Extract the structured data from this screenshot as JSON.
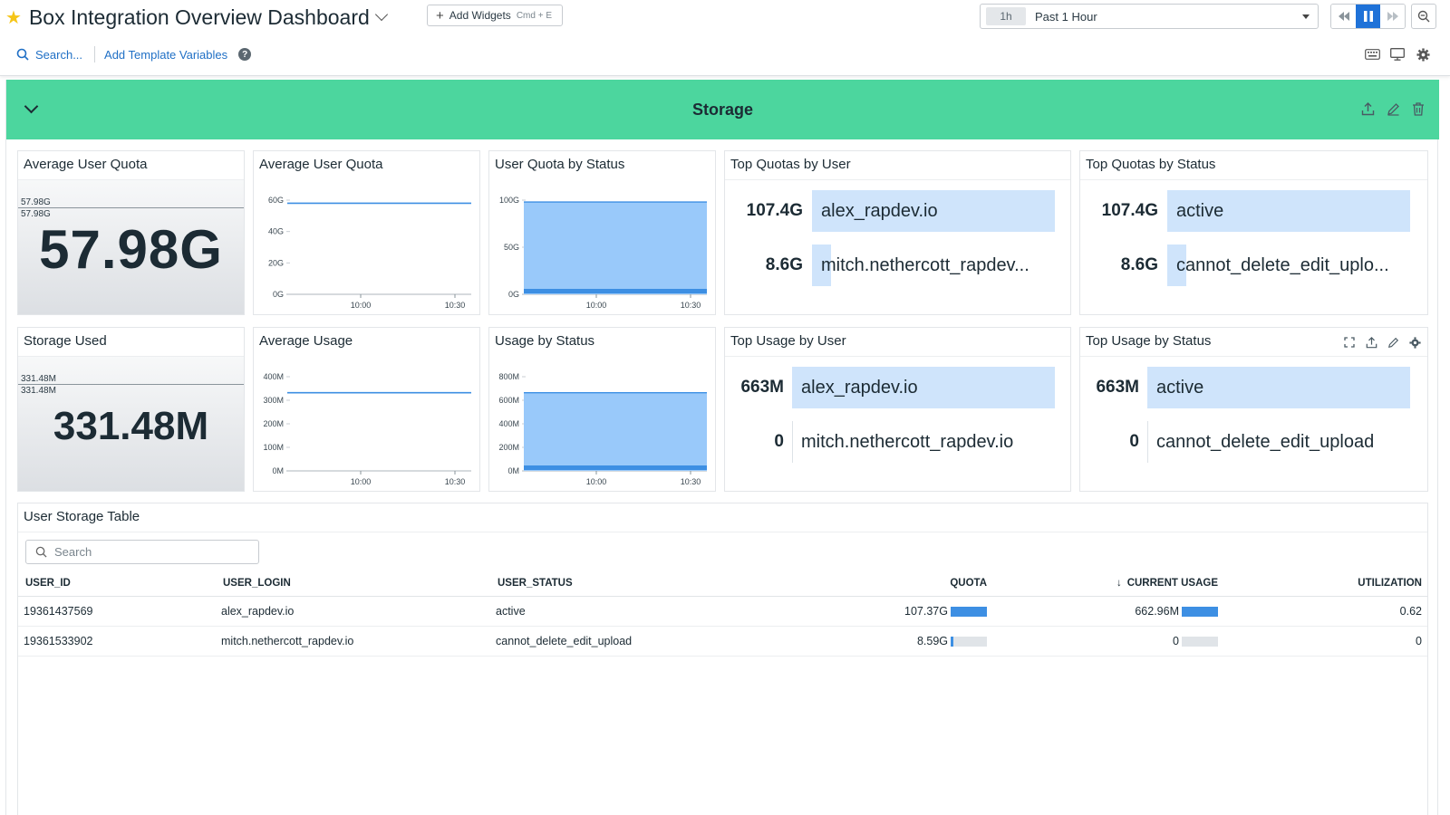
{
  "header": {
    "title": "Box Integration Overview Dashboard",
    "add_widgets": "Add Widgets",
    "add_widgets_shortcut": "Cmd + E",
    "time_badge": "1h",
    "time_label": "Past 1 Hour",
    "search_label": "Search...",
    "template_vars": "Add Template Variables",
    "help": "?"
  },
  "group": {
    "title": "Storage"
  },
  "widgets": {
    "avg_quota_qv": {
      "title": "Average User Quota",
      "value": "57.98G",
      "label_top": "57.98G",
      "label_bottom": "57.98G"
    },
    "avg_quota_ts": {
      "title": "Average User Quota",
      "y_ticks": [
        "60G",
        "40G",
        "20G",
        "0G"
      ],
      "x_ticks": [
        "10:00",
        "10:30"
      ]
    },
    "quota_by_status": {
      "title": "User Quota by Status",
      "y_ticks": [
        "100G",
        "50G",
        "0G"
      ],
      "x_ticks": [
        "10:00",
        "10:30"
      ]
    },
    "top_quotas_user": {
      "title": "Top Quotas by User",
      "rows": [
        {
          "value": "107.4G",
          "label": "alex_rapdev.io",
          "fraction": 1.0
        },
        {
          "value": "8.6G",
          "label": "mitch.nethercott_rapdev...",
          "fraction": 0.08
        }
      ]
    },
    "top_quotas_status": {
      "title": "Top Quotas by Status",
      "rows": [
        {
          "value": "107.4G",
          "label": "active",
          "fraction": 1.0
        },
        {
          "value": "8.6G",
          "label": "cannot_delete_edit_uplo...",
          "fraction": 0.08
        }
      ]
    },
    "storage_used_qv": {
      "title": "Storage Used",
      "value": "331.48M",
      "label_top": "331.48M",
      "label_bottom": "331.48M"
    },
    "avg_usage_ts": {
      "title": "Average Usage",
      "y_ticks": [
        "400M",
        "300M",
        "200M",
        "100M",
        "0M"
      ],
      "x_ticks": [
        "10:00",
        "10:30"
      ]
    },
    "usage_by_status": {
      "title": "Usage by Status",
      "y_ticks": [
        "800M",
        "600M",
        "400M",
        "200M",
        "0M"
      ],
      "x_ticks": [
        "10:00",
        "10:30"
      ]
    },
    "top_usage_user": {
      "title": "Top Usage by User",
      "rows": [
        {
          "value": "663M",
          "label": "alex_rapdev.io",
          "fraction": 1.0
        },
        {
          "value": "0",
          "label": "mitch.nethercott_rapdev.io",
          "fraction": 0
        }
      ]
    },
    "top_usage_status": {
      "title": "Top Usage by Status",
      "rows": [
        {
          "value": "663M",
          "label": "active",
          "fraction": 1.0
        },
        {
          "value": "0",
          "label": "cannot_delete_edit_upload",
          "fraction": 0
        }
      ]
    }
  },
  "table": {
    "title": "User Storage Table",
    "search_placeholder": "Search",
    "columns": [
      "USER_ID",
      "USER_LOGIN",
      "USER_STATUS",
      "QUOTA",
      "CURRENT USAGE",
      "UTILIZATION"
    ],
    "rows": [
      {
        "user_id": "19361437569",
        "user_login": "alex_rapdev.io",
        "user_status": "active",
        "quota": "107.37G",
        "quota_fraction": 1.0,
        "usage": "662.96M",
        "usage_fraction": 1.0,
        "utilization": "0.62"
      },
      {
        "user_id": "19361533902",
        "user_login": "mitch.nethercott_rapdev.io",
        "user_status": "cannot_delete_edit_upload",
        "quota": "8.59G",
        "quota_fraction": 0.08,
        "usage": "0",
        "usage_fraction": 0,
        "utilization": "0"
      }
    ]
  }
}
